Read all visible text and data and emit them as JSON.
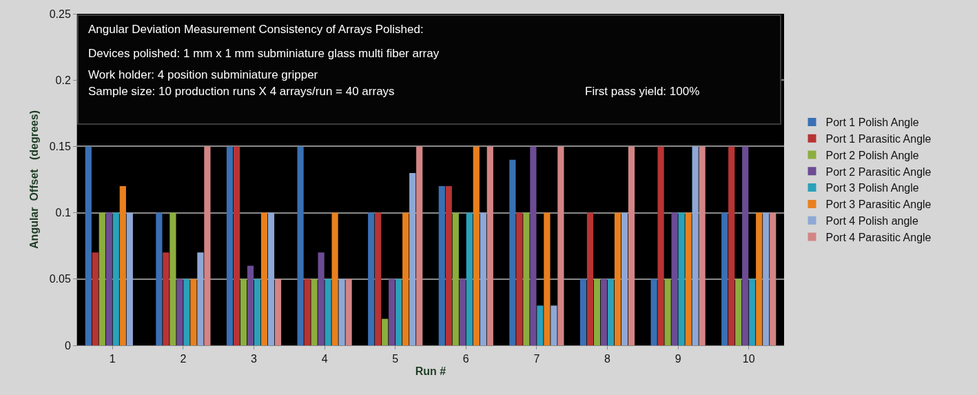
{
  "chart_data": {
    "type": "bar",
    "title": "Angular Deviation Measurement Consistency of Arrays Polished:",
    "annotations": [
      "Devices polished: 1 mm x 1 mm subminiature glass multi fiber array",
      "Work holder: 4 position subminiature gripper",
      "Sample size: 10 production runs X 4 arrays/run = 40 arrays",
      "First pass yield: 100%"
    ],
    "xlabel": "Run #",
    "ylabel": "Angular  Offset   (degrees)",
    "categories": [
      "1",
      "2",
      "3",
      "4",
      "5",
      "6",
      "7",
      "8",
      "9",
      "10"
    ],
    "series": [
      {
        "name": "Port 1 Polish Angle",
        "color": "#3a70b4",
        "values": [
          0.15,
          0.1,
          0.15,
          0.15,
          0.1,
          0.12,
          0.14,
          0.05,
          0.05,
          0.1
        ]
      },
      {
        "name": "Port 1 Parasitic Angle",
        "color": "#b83434",
        "values": [
          0.07,
          0.07,
          0.15,
          0.05,
          0.1,
          0.12,
          0.1,
          0.1,
          0.15,
          0.15
        ]
      },
      {
        "name": "Port 2 Polish Angle",
        "color": "#8cae3e",
        "values": [
          0.1,
          0.1,
          0.05,
          0.05,
          0.02,
          0.1,
          0.1,
          0.05,
          0.05,
          0.05
        ]
      },
      {
        "name": "Port 2 Parasitic Angle",
        "color": "#6c4c94",
        "values": [
          0.1,
          0.05,
          0.06,
          0.07,
          0.05,
          0.05,
          0.15,
          0.05,
          0.1,
          0.15
        ]
      },
      {
        "name": "Port 3 Polish Angle",
        "color": "#2ba1ba",
        "values": [
          0.1,
          0.05,
          0.05,
          0.05,
          0.05,
          0.1,
          0.03,
          0.05,
          0.1,
          0.05
        ]
      },
      {
        "name": "Port 3 Parasitic Angle",
        "color": "#e8801e",
        "values": [
          0.12,
          0.05,
          0.1,
          0.1,
          0.1,
          0.15,
          0.1,
          0.1,
          0.1,
          0.1
        ]
      },
      {
        "name": "Port 4 Polish angle",
        "color": "#8ea8d6",
        "values": [
          0.1,
          0.07,
          0.1,
          0.05,
          0.13,
          0.1,
          0.03,
          0.1,
          0.15,
          0.1
        ]
      },
      {
        "name": "Port 4 Parasitic Angle",
        "color": "#d38585",
        "values": [
          0,
          0.15,
          0.05,
          0.05,
          0.15,
          0.15,
          0.15,
          0.15,
          0.15,
          0.1
        ]
      }
    ],
    "ylim": [
      0,
      0.25
    ],
    "yticks": [
      0,
      0.05,
      0.1,
      0.15,
      0.2,
      0.25
    ],
    "grid": "y",
    "legend": "right"
  }
}
